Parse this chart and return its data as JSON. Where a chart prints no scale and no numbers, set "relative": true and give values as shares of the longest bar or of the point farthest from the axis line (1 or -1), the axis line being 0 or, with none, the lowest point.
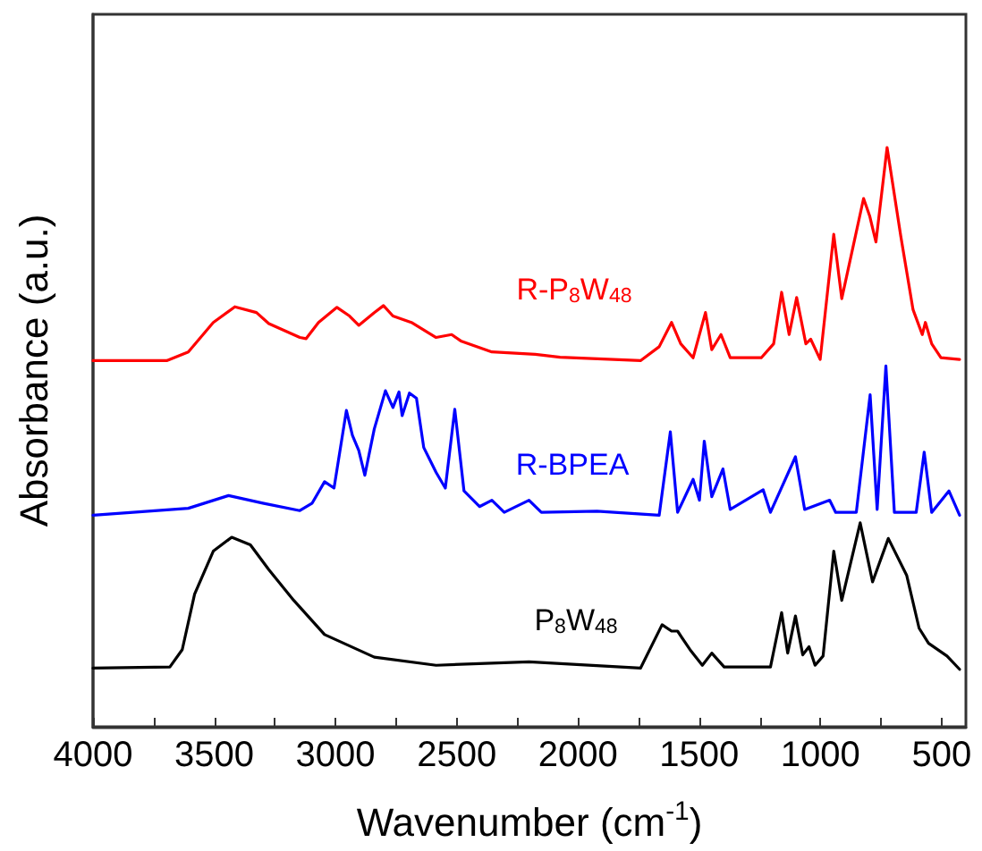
{
  "chart_data": {
    "type": "line",
    "relative": true,
    "xlabel": "Wavenumber (cm$^{-1}$)",
    "ylabel": "Absorbance (a.u.)",
    "xlim": [
      4000,
      400
    ],
    "xticks": [
      4000,
      {
        "value": 3750,
        "label": null
      },
      3500,
      {
        "value": 3250,
        "label": null
      },
      3000,
      {
        "value": 2750,
        "label": null
      },
      2500,
      {
        "value": 2250,
        "label": null
      },
      2000,
      {
        "value": 1750,
        "label": null
      },
      1500,
      {
        "value": 1250,
        "label": null
      },
      1000,
      {
        "value": 750,
        "label": null
      },
      500
    ],
    "tick_labels": "x",
    "grid": false,
    "legend": false,
    "marker": "none",
    "line_style": "solid",
    "series": [
      {
        "name": "R-P$_{8}$W$_{48}$",
        "color": "#ff0000",
        "x": [
          4000,
          3696,
          3607,
          3504,
          3415,
          3326,
          3275,
          3147,
          3121,
          3070,
          2994,
          2942,
          2904,
          2840,
          2802,
          2763,
          2687,
          2585,
          2521,
          2483,
          2355,
          2176,
          2074,
          1742,
          1665,
          1614,
          1576,
          1525,
          1474,
          1448,
          1410,
          1372,
          1244,
          1193,
          1160,
          1129,
          1098,
          1060,
          1040,
          1001,
          945,
          912,
          822,
          797,
          771,
          725,
          669,
          618,
          580,
          567,
          541,
          503,
          426
        ],
        "values": [
          0.632,
          0.632,
          0.647,
          0.698,
          0.725,
          0.715,
          0.696,
          0.672,
          0.67,
          0.698,
          0.724,
          0.709,
          0.693,
          0.715,
          0.727,
          0.709,
          0.698,
          0.672,
          0.677,
          0.666,
          0.647,
          0.643,
          0.638,
          0.632,
          0.656,
          0.698,
          0.661,
          0.637,
          0.715,
          0.651,
          0.677,
          0.637,
          0.637,
          0.661,
          0.75,
          0.677,
          0.741,
          0.661,
          0.669,
          0.634,
          0.85,
          0.739,
          0.912,
          0.882,
          0.837,
          1,
          0.848,
          0.72,
          0.677,
          0.698,
          0.661,
          0.637,
          0.634
        ]
      },
      {
        "name": "R-BPEA",
        "color": "#0000ff",
        "x": [
          4000,
          3607,
          3441,
          3300,
          3147,
          3096,
          3045,
          3006,
          2955,
          2930,
          2904,
          2879,
          2840,
          2794,
          2763,
          2738,
          2725,
          2695,
          2666,
          2636,
          2585,
          2547,
          2508,
          2470,
          2406,
          2355,
          2304,
          2202,
          2151,
          1921,
          1665,
          1619,
          1589,
          1525,
          1499,
          1479,
          1448,
          1402,
          1372,
          1236,
          1206,
          1103,
          1065,
          962,
          937,
          852,
          795,
          766,
          730,
          695,
          605,
          572,
          541,
          470,
          426
        ],
        "values": [
          0.365,
          0.377,
          0.399,
          0.386,
          0.373,
          0.386,
          0.423,
          0.412,
          0.546,
          0.503,
          0.477,
          0.434,
          0.514,
          0.58,
          0.551,
          0.578,
          0.537,
          0.576,
          0.567,
          0.482,
          0.439,
          0.412,
          0.548,
          0.407,
          0.38,
          0.391,
          0.37,
          0.391,
          0.37,
          0.372,
          0.365,
          0.509,
          0.37,
          0.427,
          0.391,
          0.493,
          0.397,
          0.445,
          0.375,
          0.409,
          0.37,
          0.466,
          0.375,
          0.391,
          0.37,
          0.37,
          0.573,
          0.375,
          0.623,
          0.37,
          0.37,
          0.474,
          0.37,
          0.407,
          0.365
        ]
      },
      {
        "name": "P$_{8}$W$_{48}$",
        "color": "#000000",
        "x": [
          4000,
          3683,
          3632,
          3581,
          3504,
          3428,
          3351,
          3275,
          3172,
          3045,
          2840,
          2585,
          2202,
          1742,
          1653,
          1614,
          1589,
          1538,
          1487,
          1448,
          1397,
          1206,
          1160,
          1135,
          1103,
          1073,
          1047,
          1022,
          989,
          945,
          912,
          836,
          785,
          720,
          644,
          593,
          554,
          478,
          426
        ],
        "values": [
          0.101,
          0.103,
          0.133,
          0.229,
          0.303,
          0.327,
          0.314,
          0.271,
          0.218,
          0.159,
          0.12,
          0.106,
          0.112,
          0.101,
          0.176,
          0.165,
          0.165,
          0.133,
          0.106,
          0.127,
          0.103,
          0.103,
          0.197,
          0.127,
          0.191,
          0.124,
          0.138,
          0.106,
          0.122,
          0.303,
          0.218,
          0.352,
          0.25,
          0.325,
          0.261,
          0.17,
          0.144,
          0.122,
          0.099
        ]
      }
    ]
  }
}
